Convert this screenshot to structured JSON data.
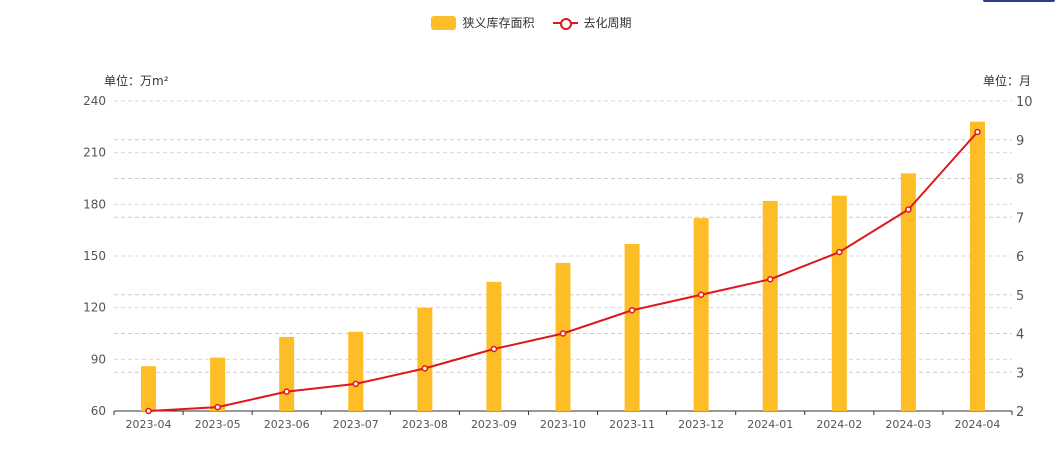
{
  "chart_data": {
    "type": "bar+line",
    "legend": {
      "bar_label": "狭义库存面积",
      "line_label": "去化周期"
    },
    "left_unit": "单位：万m²",
    "right_unit": "单位：月",
    "categories": [
      "2023-04",
      "2023-05",
      "2023-06",
      "2023-07",
      "2023-08",
      "2023-09",
      "2023-10",
      "2023-11",
      "2023-12",
      "2024-01",
      "2024-02",
      "2024-03",
      "2024-04"
    ],
    "series": [
      {
        "name": "狭义库存面积",
        "type": "bar",
        "axis": "left",
        "color": "#FDBD27",
        "values": [
          86,
          91,
          103,
          106,
          120,
          135,
          146,
          157,
          172,
          182,
          185,
          198,
          228
        ]
      },
      {
        "name": "去化周期",
        "type": "line",
        "axis": "right",
        "color": "#E0161A",
        "values": [
          2.0,
          2.1,
          2.5,
          2.7,
          3.1,
          3.6,
          4.0,
          4.6,
          5.0,
          5.4,
          6.1,
          7.2,
          9.2
        ]
      }
    ],
    "left_axis": {
      "min": 60,
      "max": 240,
      "ticks": [
        60,
        90,
        120,
        150,
        180,
        210,
        240
      ]
    },
    "right_axis": {
      "min": 2,
      "max": 10,
      "ticks": [
        2,
        3,
        4,
        5,
        6,
        7,
        8,
        9,
        10
      ]
    }
  }
}
